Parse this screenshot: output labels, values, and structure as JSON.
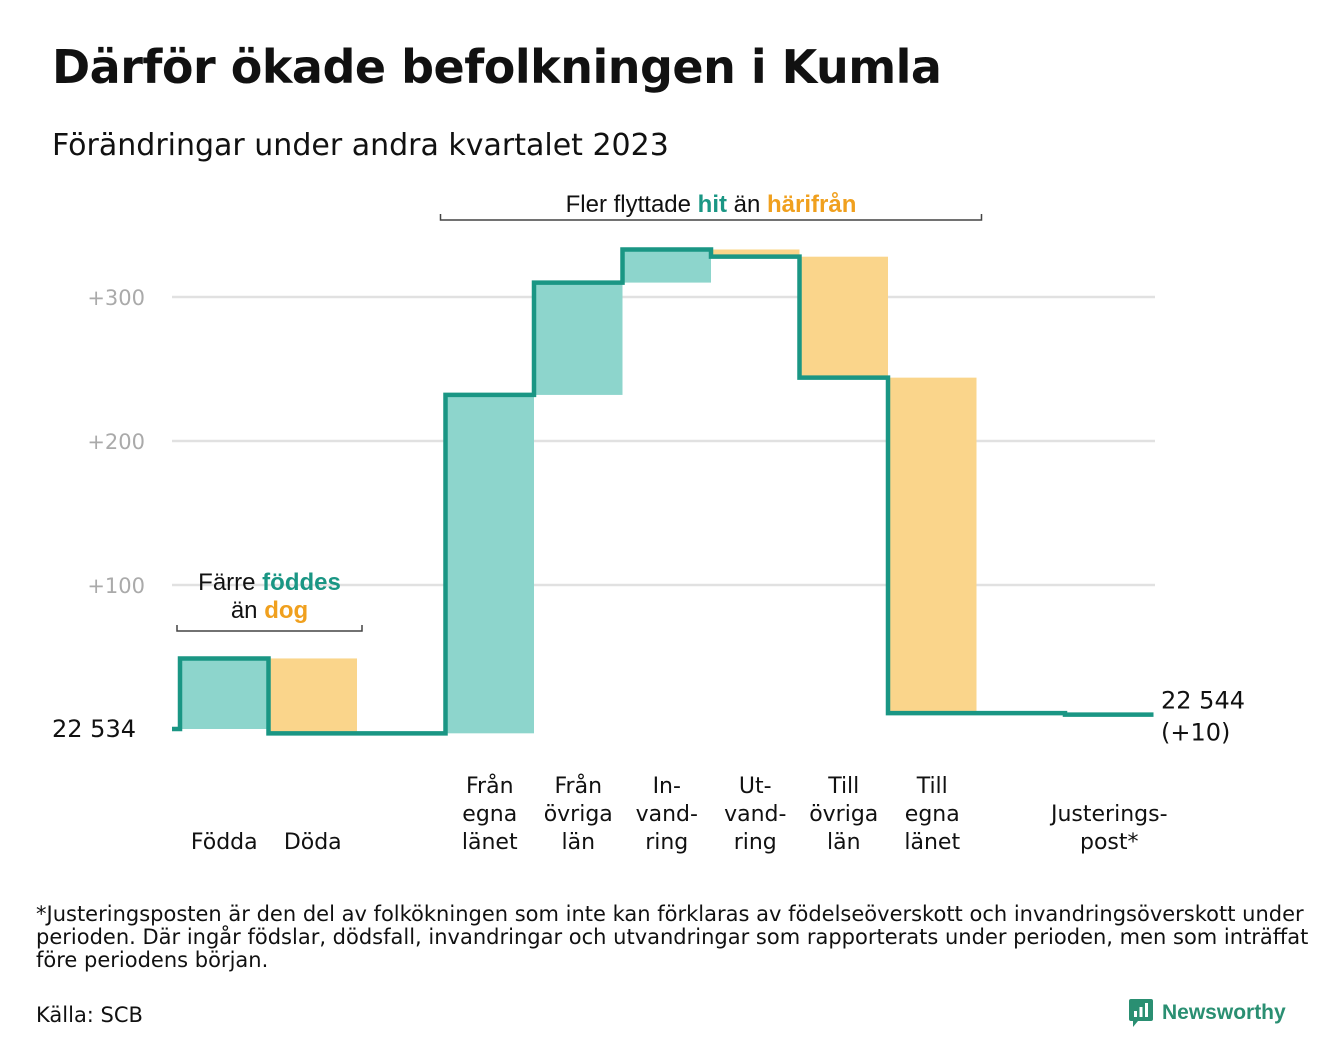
{
  "header": {
    "title": "Därför ökade befolkningen i Kumla",
    "subtitle": "Förändringar under andra kvartalet 2023"
  },
  "colors": {
    "increase_fill": "#8dd5cc",
    "decrease_fill": "#fad58b",
    "step_line": "#1a9684",
    "teal_text": "#1a9684",
    "orange_text": "#f0a01e",
    "grid": "#e1e1e1",
    "tick_text": "#aaaaaa"
  },
  "chart_data": {
    "type": "waterfall",
    "title": "Därför ökade befolkningen i Kumla",
    "subtitle": "Förändringar under andra kvartalet 2023",
    "ylim": [
      0,
      340
    ],
    "yticks": [
      100,
      200,
      300
    ],
    "ytick_labels": [
      "+100",
      "+200",
      "+300"
    ],
    "grid": true,
    "start_label": "22  534",
    "end_label": [
      "22 544",
      "(+10)"
    ],
    "steps": [
      {
        "label": [
          "Födda"
        ],
        "from": 0,
        "to": 49,
        "kind": "increase"
      },
      {
        "label": [
          "Döda"
        ],
        "from": 49,
        "to": -3,
        "kind": "decrease"
      },
      {
        "label": [],
        "from": -3,
        "to": -3,
        "kind": "gap"
      },
      {
        "label": [
          "Från",
          "egna",
          "länet"
        ],
        "from": -3,
        "to": 232,
        "kind": "increase"
      },
      {
        "label": [
          "Från",
          "övriga",
          "län"
        ],
        "from": 232,
        "to": 310,
        "kind": "increase"
      },
      {
        "label": [
          "In-",
          "vand-",
          "ring"
        ],
        "from": 310,
        "to": 333,
        "kind": "increase"
      },
      {
        "label": [
          "Ut-",
          "vand-",
          "ring"
        ],
        "from": 333,
        "to": 328,
        "kind": "decrease"
      },
      {
        "label": [
          "Till",
          "övriga",
          "län"
        ],
        "from": 328,
        "to": 244,
        "kind": "decrease"
      },
      {
        "label": [
          "Till",
          "egna",
          "länet"
        ],
        "from": 244,
        "to": 11,
        "kind": "decrease"
      },
      {
        "label": [],
        "from": 11,
        "to": 11,
        "kind": "gap"
      },
      {
        "label": [
          "Justerings-",
          "post*"
        ],
        "from": 11,
        "to": 10,
        "kind": "decrease"
      }
    ],
    "annotations": [
      {
        "parts": [
          {
            "text": "Färre ",
            "tone": "plain"
          },
          {
            "text": "föddes",
            "tone": "teal"
          }
        ],
        "second_line": [
          {
            "text": "än ",
            "tone": "plain"
          },
          {
            "text": "dog",
            "tone": "orange"
          }
        ],
        "span": [
          0,
          1
        ]
      },
      {
        "parts": [
          {
            "text": "Fler flyttade ",
            "tone": "plain"
          },
          {
            "text": "hit",
            "tone": "teal"
          },
          {
            "text": " än ",
            "tone": "plain"
          },
          {
            "text": "härifrån",
            "tone": "orange"
          }
        ],
        "span": [
          3,
          8
        ]
      }
    ]
  },
  "footer": {
    "footnote": "*Justeringsposten är den del av folkökningen som inte kan förklaras av födelseöverskott och invandringsöverskott under perioden. Där ingår födslar, dödsfall, invandringar och utvandringar som rapporterats under perioden, men som inträffat före periodens början.",
    "source": "Källa: SCB",
    "brand": "Newsworthy"
  }
}
